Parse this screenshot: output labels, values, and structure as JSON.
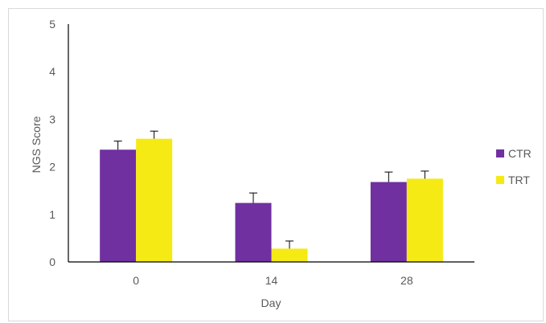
{
  "chart_data": {
    "type": "bar",
    "categories": [
      "0",
      "14",
      "28"
    ],
    "series": [
      {
        "name": "CTR",
        "values": [
          2.36,
          1.24,
          1.68
        ],
        "errors": [
          0.18,
          0.21,
          0.21
        ],
        "color": "#7030A0"
      },
      {
        "name": "TRT",
        "values": [
          2.59,
          0.28,
          1.75
        ],
        "errors": [
          0.16,
          0.16,
          0.16
        ],
        "color": "#F5EA14"
      }
    ],
    "xlabel": "Day",
    "ylabel": "NGS Score",
    "ylim": [
      0,
      5
    ],
    "yticks": [
      "0",
      "1",
      "2",
      "3",
      "4",
      "5"
    ],
    "grid": false,
    "legend_position": "right"
  }
}
